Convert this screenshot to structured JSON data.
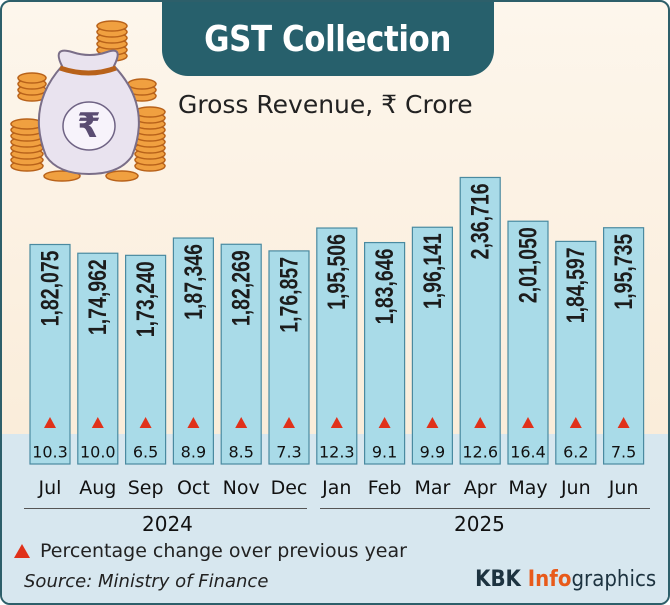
{
  "title": "GST Collection",
  "subtitle": "Gross Revenue, ₹ Crore",
  "legend": "Percentage change over previous year",
  "source": "Source: Ministry of Finance",
  "brand": {
    "part1": "KBK ",
    "part2": "Info",
    "part3": "graphics"
  },
  "colors": {
    "header": "#27606c",
    "bar_fill": "#a9dbe8",
    "bar_border": "#4a8aa0",
    "triangle": "#e0311a",
    "brand_accent": "#e85a1a"
  },
  "icons": {
    "decoration": "money-bag-with-coins-icon"
  },
  "chart_data": {
    "type": "bar",
    "title": "GST Collection",
    "subtitle": "Gross Revenue, ₹ Crore",
    "categories": [
      "Jul",
      "Aug",
      "Sep",
      "Oct",
      "Nov",
      "Dec",
      "Jan",
      "Feb",
      "Mar",
      "Apr",
      "May",
      "Jun",
      "Jun"
    ],
    "year_groups": [
      {
        "label": "2024",
        "months": 6
      },
      {
        "label": "2025",
        "months": 7
      }
    ],
    "series": [
      {
        "values": [
          182075,
          174962,
          173240,
          187346,
          182269,
          176857,
          195506,
          183646,
          196141,
          236716,
          201050,
          184597,
          195735
        ]
      }
    ],
    "value_labels": [
      "1,82,075",
      "1,74,962",
      "1,73,240",
      "1,87,346",
      "1,82,269",
      "1,76,857",
      "1,95,506",
      "1,83,646",
      "1,96,141",
      "2,36,716",
      "2,01,050",
      "1,84,597",
      "1,95,735"
    ],
    "pct_change": [
      10.3,
      10.0,
      6.5,
      8.9,
      8.5,
      7.3,
      12.3,
      9.1,
      9.9,
      12.6,
      16.4,
      6.2,
      7.5
    ],
    "pct_labels": [
      "10.3",
      "10.0",
      "6.5",
      "8.9",
      "8.5",
      "7.3",
      "12.3",
      "9.1",
      "9.9",
      "12.6",
      "16.4",
      "6.2",
      "7.5"
    ],
    "grid": false
  }
}
